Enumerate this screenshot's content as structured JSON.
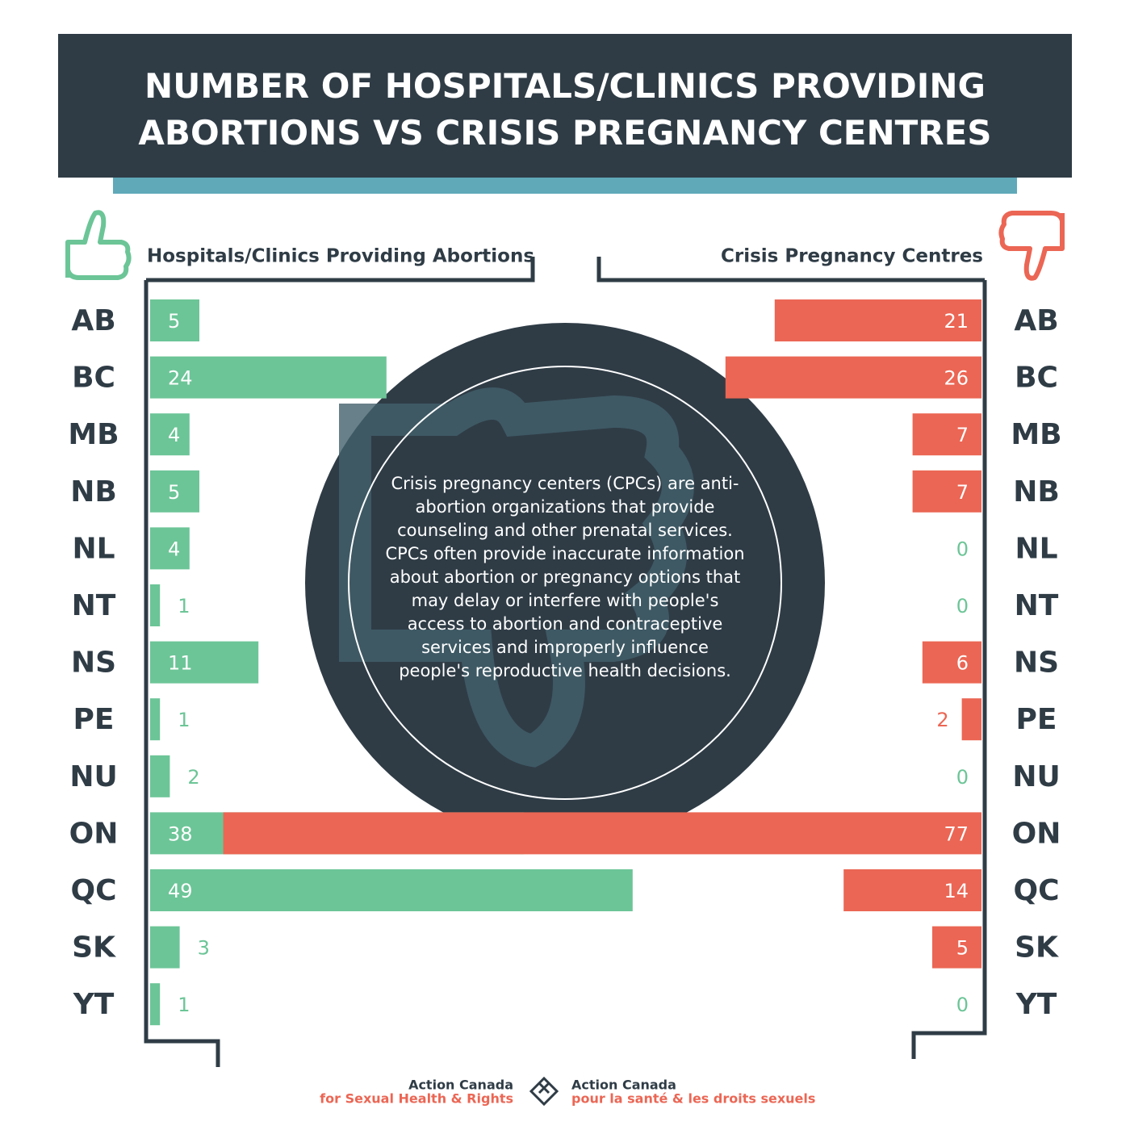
{
  "chart_data": {
    "type": "mirror-bar",
    "title": "NUMBER OF HOSPITALS/CLINICS PROVIDING ABORTIONS VS CRISIS PREGNANCY CENTRES",
    "categories": [
      "AB",
      "BC",
      "MB",
      "NB",
      "NL",
      "NT",
      "NS",
      "PE",
      "NU",
      "ON",
      "QC",
      "SK",
      "YT"
    ],
    "series": [
      {
        "name": "Hospitals/Clinics Providing Abortions",
        "color": "#6cc597",
        "values": [
          5,
          24,
          4,
          5,
          4,
          1,
          11,
          1,
          2,
          38,
          49,
          3,
          1
        ]
      },
      {
        "name": "Crisis Pregnancy Centres",
        "color": "#eb6654",
        "values": [
          21,
          26,
          7,
          7,
          0,
          0,
          6,
          2,
          0,
          77,
          14,
          5,
          0
        ]
      }
    ],
    "annotation": "Crisis pregnancy centers (CPCs) are anti-abortion organizations that provide counseling and other prenatal services. CPCs often provide inaccurate information about abortion or pregnancy options that may delay or interfere with people's access to abortion and contraceptive services and improperly influence people's reproductive health decisions."
  },
  "footer": {
    "org_en": "Action Canada",
    "tag_en": "for Sexual Health & Rights",
    "org_fr": "Action Canada",
    "tag_fr": "pour la santé & les droits sexuels"
  }
}
